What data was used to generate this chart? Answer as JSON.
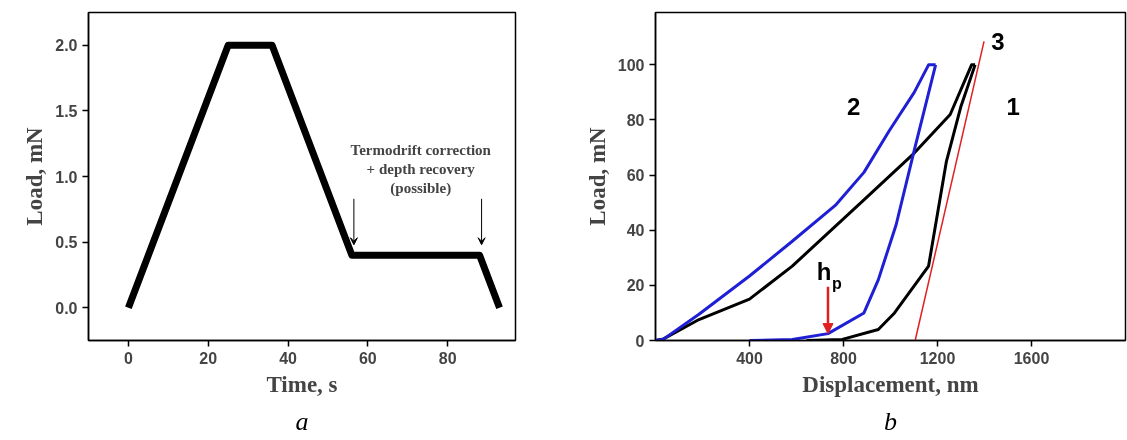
{
  "chart_data": [
    {
      "type": "line",
      "xlabel": "Time, s",
      "ylabel": "Load, mN",
      "xlim": [
        -10,
        97
      ],
      "ylim": [
        -0.25,
        2.25
      ],
      "xticks": [
        0,
        20,
        40,
        60,
        80
      ],
      "yticks": [
        {
          "value": 0,
          "label": "0.0"
        },
        {
          "value": 0.5,
          "label": "0.5"
        },
        {
          "value": 1,
          "label": "1.0"
        },
        {
          "value": 1.5,
          "label": "1.5"
        },
        {
          "value": 2,
          "label": "2.0"
        }
      ],
      "grid": false,
      "marker": "none",
      "line_style": "solid",
      "series": [
        {
          "color": "#000000",
          "x": [
            0,
            25,
            36,
            56,
            88,
            93
          ],
          "values": [
            0,
            2,
            2,
            0.4,
            0.4,
            0
          ]
        }
      ],
      "annotations": [
        "Termodrift correction\n+ depth recovery\n(possible)",
        "a"
      ]
    },
    {
      "type": "line",
      "xlabel": "Displacement, nm",
      "ylabel": "Load, mN",
      "xlim": [
        0,
        2000
      ],
      "ylim": [
        0,
        119
      ],
      "xticks": [
        400,
        800,
        1200,
        1600
      ],
      "yticks": [
        0,
        20,
        40,
        60,
        80,
        100
      ],
      "grid": false,
      "marker": "none",
      "line_style": "solid",
      "series": [
        {
          "color": "#000000",
          "x": [
            0,
            34,
            185,
            400,
            582,
            887,
            1101,
            1254,
            1345,
            1360
          ],
          "values": [
            0,
            0.6,
            7.6,
            15,
            27,
            51,
            68,
            82,
            100,
            100
          ]
        },
        {
          "name": "1",
          "color": "#000000",
          "x": [
            643,
            795,
            948,
            1017,
            1162,
            1238,
            1300,
            1360
          ],
          "values": [
            0,
            0.4,
            4,
            10,
            27,
            65,
            85,
            100
          ]
        },
        {
          "name": "2",
          "color": "#1f1fd6",
          "x": [
            0,
            34,
            185,
            400,
            582,
            765,
            887,
            994,
            1101,
            1162,
            1192
          ],
          "values": [
            0,
            0.5,
            9.5,
            23.4,
            36,
            49,
            61,
            76,
            90,
            100,
            100
          ]
        },
        {
          "color": "#1f1fd6",
          "x": [
            400,
            582,
            734,
            887,
            948,
            1024,
            1101,
            1192
          ],
          "values": [
            0,
            0.4,
            2.5,
            10,
            22,
            42,
            69,
            100
          ]
        },
        {
          "name": "3",
          "color": "#e02020",
          "x": [
            1105,
            1398
          ],
          "values": [
            0,
            108.5
          ]
        }
      ],
      "annotations": [
        {
          "text": "h$_{p}$",
          "x": 734,
          "y": 2.5
        },
        "b"
      ]
    }
  ]
}
